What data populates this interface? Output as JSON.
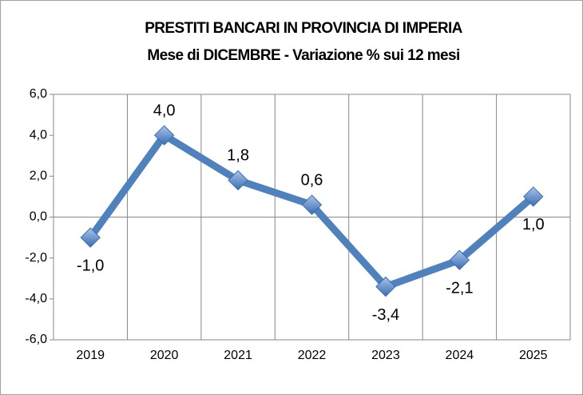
{
  "chart_data": {
    "type": "line",
    "title": "PRESTITI BANCARI IN PROVINCIA DI IMPERIA",
    "subtitle": "Mese di DICEMBRE - Variazione % sui 12 mesi",
    "categories": [
      "2019",
      "2020",
      "2021",
      "2022",
      "2023",
      "2024",
      "2025"
    ],
    "values": [
      -1.0,
      4.0,
      1.8,
      0.6,
      -3.4,
      -2.1,
      1.0
    ],
    "value_labels": [
      "-1,0",
      "4,0",
      "1,8",
      "0,6",
      "-3,4",
      "-2,1",
      "1,0"
    ],
    "color": "#4f81bd",
    "ylim": [
      -6,
      6
    ],
    "yticks": [
      {
        "value": -6,
        "label": "-6,0"
      },
      {
        "value": -4,
        "label": "-4,0"
      },
      {
        "value": -2,
        "label": "-2,0"
      },
      {
        "value": 0,
        "label": "0,0"
      },
      {
        "value": 2,
        "label": "2,0"
      },
      {
        "value": 4,
        "label": "4,0"
      },
      {
        "value": 6,
        "label": "6,0"
      }
    ],
    "grid": true
  }
}
